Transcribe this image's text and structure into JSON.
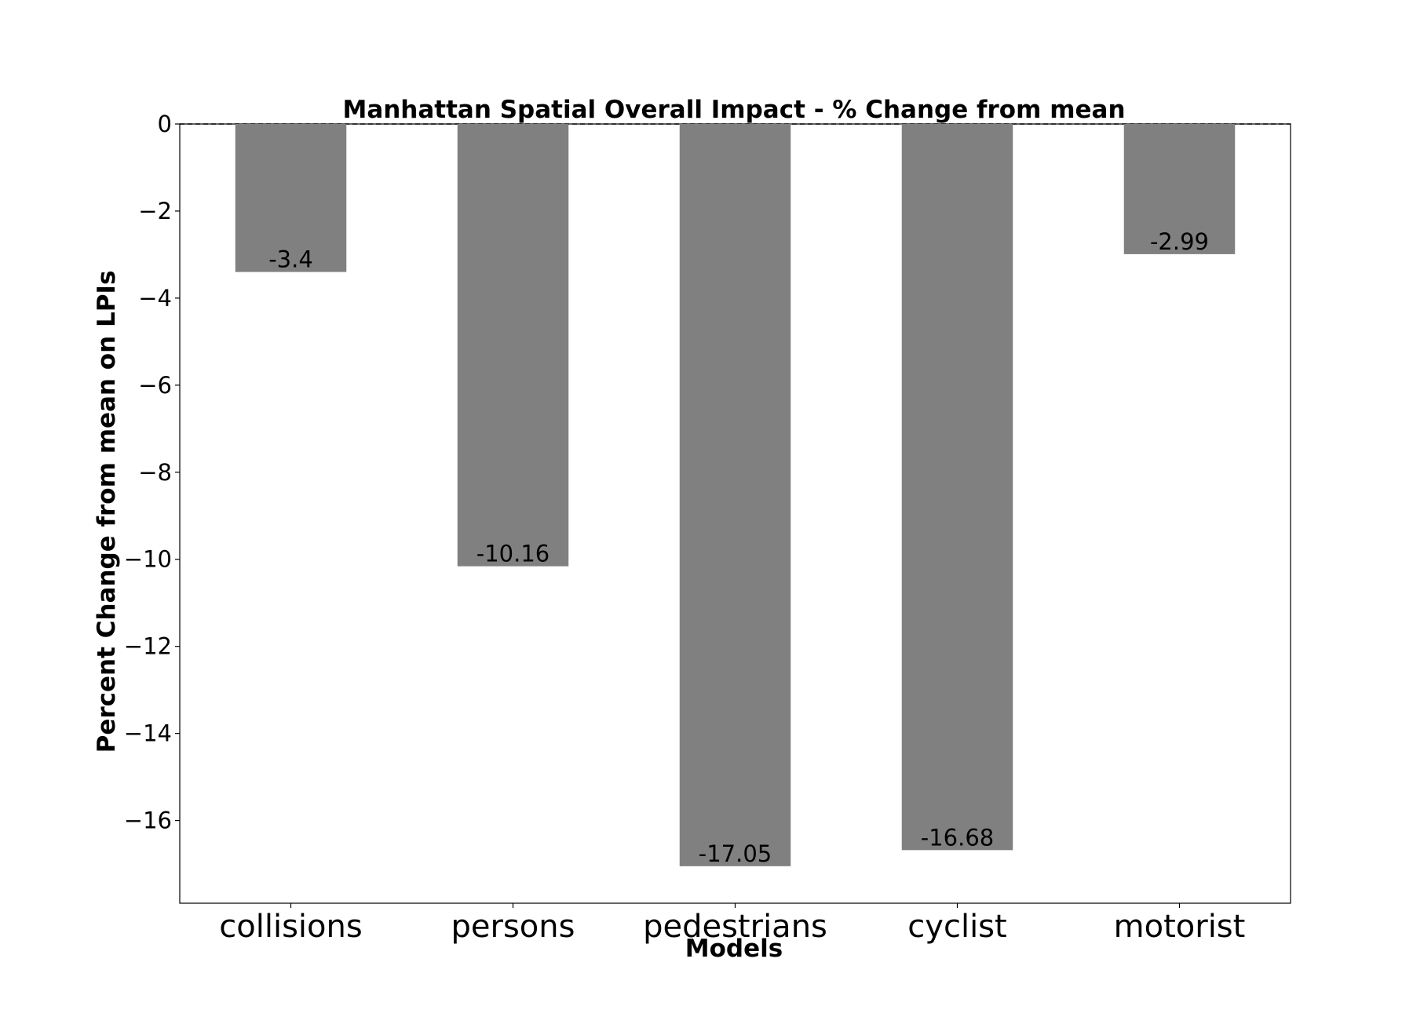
{
  "chart_data": {
    "type": "bar",
    "title": "Manhattan Spatial Overall Impact - % Change from mean",
    "xlabel": "Models",
    "ylabel": "Percent Change from mean on LPIs",
    "categories": [
      "collisions",
      "persons",
      "pedestrians",
      "cyclist",
      "motorist"
    ],
    "values": [
      -3.4,
      -10.16,
      -17.05,
      -16.68,
      -2.99
    ],
    "value_labels": [
      "-3.4",
      "-10.16",
      "-17.05",
      "-16.68",
      "-2.99"
    ],
    "ylim": [
      -17.9,
      0
    ],
    "yticks": [
      0,
      -2,
      -4,
      -6,
      -8,
      -10,
      -12,
      -14,
      -16
    ],
    "ytick_labels": [
      "0",
      "−2",
      "−4",
      "−6",
      "−8",
      "−10",
      "−12",
      "−14",
      "−16"
    ],
    "bar_color": "#808080",
    "zero_line": "dashed",
    "grid": false,
    "legend": "none"
  }
}
